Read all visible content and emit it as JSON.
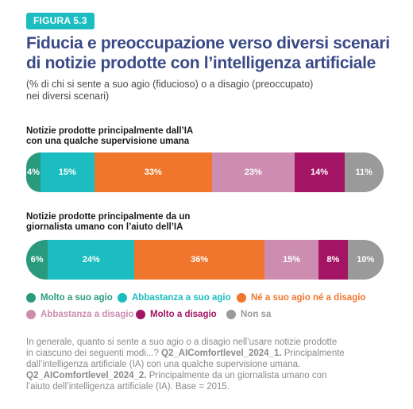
{
  "badge": "FIGURA 5.3",
  "title_line1": "Fiducia e preoccupazione verso diversi scenari",
  "title_line2": "di notizie prodotte con l’intelligenza artificiale",
  "subtitle_line1": "(% di chi si sente a suo agio (fiducioso) o a disagio (preoccupato)",
  "subtitle_line2": "nei diversi scenari)",
  "colors": {
    "molto_agio": "#2a9a7e",
    "abbastanza_agio": "#1bbdc1",
    "ne_ne": "#f0762d",
    "abbastanza_disagio": "#cc8db0",
    "molto_disagio": "#a31464",
    "non_sa": "#9a9a9a"
  },
  "chart_data": {
    "type": "bar",
    "stacked": true,
    "orientation": "horizontal",
    "categories": [
      "Notizie prodotte principalmente dall’IA con una qualche supervisione umana",
      "Notizie prodotte principalmente da un giornalista umano con l’aiuto dell’IA"
    ],
    "category_lines": [
      [
        "Notizie prodotte principalmente dall’IA",
        "con una qualche supervisione umana"
      ],
      [
        "Notizie prodotte principalmente da un",
        "giornalista umano con l’aiuto dell’IA"
      ]
    ],
    "series": [
      {
        "name": "Molto a suo agio",
        "color": "#2a9a7e",
        "values": [
          4,
          6
        ]
      },
      {
        "name": "Abbastanza a suo agio",
        "color": "#1bbdc1",
        "values": [
          15,
          24
        ]
      },
      {
        "name": "Né a suo agio né a disagio",
        "color": "#f0762d",
        "values": [
          33,
          36
        ]
      },
      {
        "name": "Abbastanza a disagio",
        "color": "#cc8db0",
        "values": [
          23,
          15
        ]
      },
      {
        "name": "Molto a disagio",
        "color": "#a31464",
        "values": [
          14,
          8
        ]
      },
      {
        "name": "Non sa",
        "color": "#9a9a9a",
        "values": [
          11,
          10
        ]
      }
    ],
    "value_suffix": "%",
    "xlim": [
      0,
      100
    ],
    "legend_position": "bottom"
  },
  "note": {
    "line1": "In generale, quanto si sente a suo agio o a disagio nell’usare notizie prodotte",
    "line2_pre": "in ciascuno dei seguenti modi...? ",
    "code1": "Q2_AIComfortlevel_2024_1.",
    "line2_post": " Principalmente",
    "line3": "dall’intelligenza artificiale (IA) con una qualche supervisione umana.",
    "code2": "Q2_AIComfortlevel_2024_2.",
    "line4_post": " Principalmente da un giornalista umano con",
    "line5": "l’aiuto dell’intelligenza artificiale (IA). Base = 2015."
  }
}
